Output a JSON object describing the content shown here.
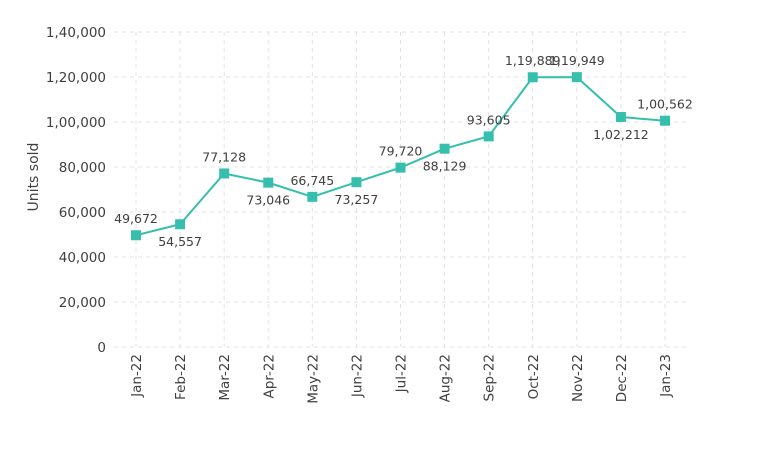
{
  "chart_data": {
    "type": "line",
    "title": "",
    "xlabel": "",
    "ylabel": "Units sold",
    "ylim": [
      0,
      140000
    ],
    "yticks": [
      0,
      20000,
      40000,
      60000,
      80000,
      100000,
      120000,
      140000
    ],
    "ytick_labels": [
      "0",
      "20,000",
      "40,000",
      "60,000",
      "80,000",
      "1,00,000",
      "1,20,000",
      "1,40,000"
    ],
    "grid": true,
    "categories": [
      "Jan-22",
      "Feb-22",
      "Mar-22",
      "Apr-22",
      "May-22",
      "Jun-22",
      "Jul-22",
      "Aug-22",
      "Sep-22",
      "Oct-22",
      "Nov-22",
      "Dec-22",
      "Jan-23"
    ],
    "series": [
      {
        "values": [
          49672,
          54557,
          77128,
          73046,
          66745,
          73257,
          79720,
          88129,
          93605,
          119889,
          119949,
          102212,
          100562
        ],
        "data_labels": [
          "49,672",
          "54,557",
          "77,128",
          "73,046",
          "66,745",
          "73,257",
          "79,720",
          "88,129",
          "93,605",
          "1,19,889",
          "1,19,949",
          "1,02,212",
          "1,00,562"
        ],
        "label_positions": [
          "above",
          "below",
          "above",
          "below",
          "above",
          "below",
          "above",
          "below",
          "above",
          "above",
          "above",
          "below",
          "above"
        ]
      }
    ],
    "colors": {
      "line": "#36bfad",
      "grid": "#e3e3e3",
      "text": "#3f3f3f"
    }
  }
}
